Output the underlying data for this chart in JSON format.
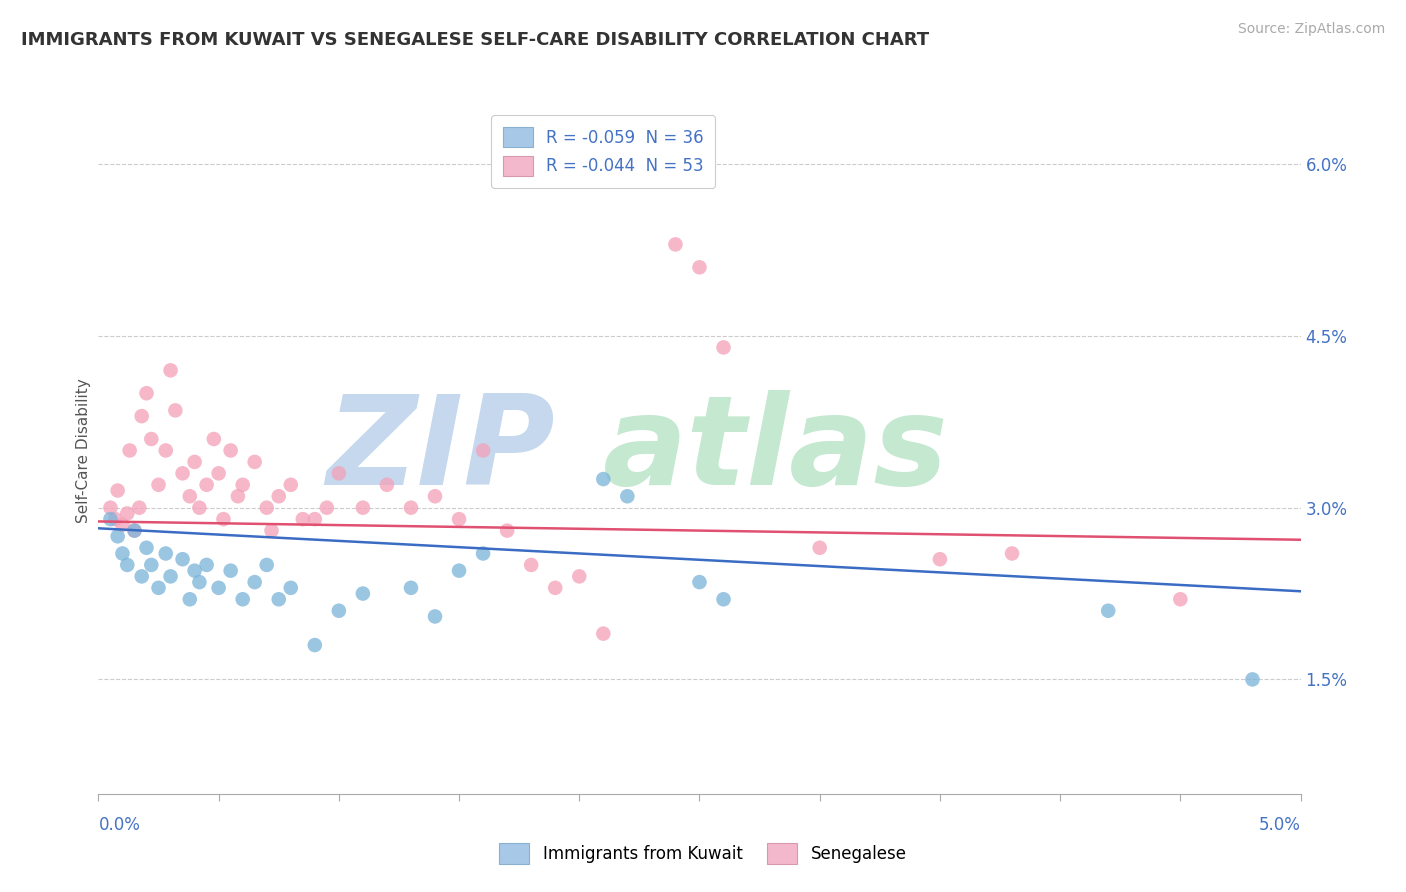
{
  "title": "IMMIGRANTS FROM KUWAIT VS SENEGALESE SELF-CARE DISABILITY CORRELATION CHART",
  "source": "Source: ZipAtlas.com",
  "ylabel": "Self-Care Disability",
  "xmin": 0.0,
  "xmax": 5.0,
  "ymin": 0.5,
  "ymax": 6.5,
  "yticks": [
    1.5,
    3.0,
    4.5,
    6.0
  ],
  "ytick_labels": [
    "1.5%",
    "3.0%",
    "4.5%",
    "6.0%"
  ],
  "legend_entries": [
    {
      "label": "R = -0.059  N = 36"
    },
    {
      "label": "R = -0.044  N = 53"
    }
  ],
  "series1_label": "Immigrants from Kuwait",
  "series2_label": "Senegalese",
  "series1_color": "#7ab3d9",
  "series2_color": "#f4a0b8",
  "trendline1_color": "#3a6cc4",
  "trendline2_color": "#e05070",
  "background_color": "#ffffff",
  "blue_trendline": [
    2.82,
    2.27
  ],
  "pink_trendline": [
    2.88,
    2.72
  ],
  "blue_points": [
    [
      0.05,
      2.9
    ],
    [
      0.08,
      2.75
    ],
    [
      0.1,
      2.6
    ],
    [
      0.12,
      2.5
    ],
    [
      0.15,
      2.8
    ],
    [
      0.18,
      2.4
    ],
    [
      0.2,
      2.65
    ],
    [
      0.22,
      2.5
    ],
    [
      0.25,
      2.3
    ],
    [
      0.28,
      2.6
    ],
    [
      0.3,
      2.4
    ],
    [
      0.35,
      2.55
    ],
    [
      0.38,
      2.2
    ],
    [
      0.4,
      2.45
    ],
    [
      0.42,
      2.35
    ],
    [
      0.45,
      2.5
    ],
    [
      0.5,
      2.3
    ],
    [
      0.55,
      2.45
    ],
    [
      0.6,
      2.2
    ],
    [
      0.65,
      2.35
    ],
    [
      0.7,
      2.5
    ],
    [
      0.75,
      2.2
    ],
    [
      0.8,
      2.3
    ],
    [
      0.9,
      1.8
    ],
    [
      1.0,
      2.1
    ],
    [
      1.1,
      2.25
    ],
    [
      1.3,
      2.3
    ],
    [
      1.4,
      2.05
    ],
    [
      1.5,
      2.45
    ],
    [
      1.6,
      2.6
    ],
    [
      2.1,
      3.25
    ],
    [
      2.2,
      3.1
    ],
    [
      2.5,
      2.35
    ],
    [
      2.6,
      2.2
    ],
    [
      4.2,
      2.1
    ],
    [
      4.8,
      1.5
    ]
  ],
  "pink_points": [
    [
      0.05,
      3.0
    ],
    [
      0.07,
      2.9
    ],
    [
      0.08,
      3.15
    ],
    [
      0.1,
      2.85
    ],
    [
      0.12,
      2.95
    ],
    [
      0.13,
      3.5
    ],
    [
      0.15,
      2.8
    ],
    [
      0.17,
      3.0
    ],
    [
      0.18,
      3.8
    ],
    [
      0.2,
      4.0
    ],
    [
      0.22,
      3.6
    ],
    [
      0.25,
      3.2
    ],
    [
      0.28,
      3.5
    ],
    [
      0.3,
      4.2
    ],
    [
      0.32,
      3.85
    ],
    [
      0.35,
      3.3
    ],
    [
      0.38,
      3.1
    ],
    [
      0.4,
      3.4
    ],
    [
      0.42,
      3.0
    ],
    [
      0.45,
      3.2
    ],
    [
      0.48,
      3.6
    ],
    [
      0.5,
      3.3
    ],
    [
      0.52,
      2.9
    ],
    [
      0.55,
      3.5
    ],
    [
      0.58,
      3.1
    ],
    [
      0.6,
      3.2
    ],
    [
      0.65,
      3.4
    ],
    [
      0.7,
      3.0
    ],
    [
      0.72,
      2.8
    ],
    [
      0.75,
      3.1
    ],
    [
      0.8,
      3.2
    ],
    [
      0.85,
      2.9
    ],
    [
      0.9,
      2.9
    ],
    [
      0.95,
      3.0
    ],
    [
      1.0,
      3.3
    ],
    [
      1.1,
      3.0
    ],
    [
      1.2,
      3.2
    ],
    [
      1.3,
      3.0
    ],
    [
      1.4,
      3.1
    ],
    [
      1.5,
      2.9
    ],
    [
      1.6,
      3.5
    ],
    [
      1.7,
      2.8
    ],
    [
      1.8,
      2.5
    ],
    [
      1.9,
      2.3
    ],
    [
      2.0,
      2.4
    ],
    [
      2.1,
      1.9
    ],
    [
      2.4,
      5.3
    ],
    [
      2.5,
      5.1
    ],
    [
      2.6,
      4.4
    ],
    [
      3.0,
      2.65
    ],
    [
      3.5,
      2.55
    ],
    [
      3.8,
      2.6
    ],
    [
      4.5,
      2.2
    ]
  ]
}
